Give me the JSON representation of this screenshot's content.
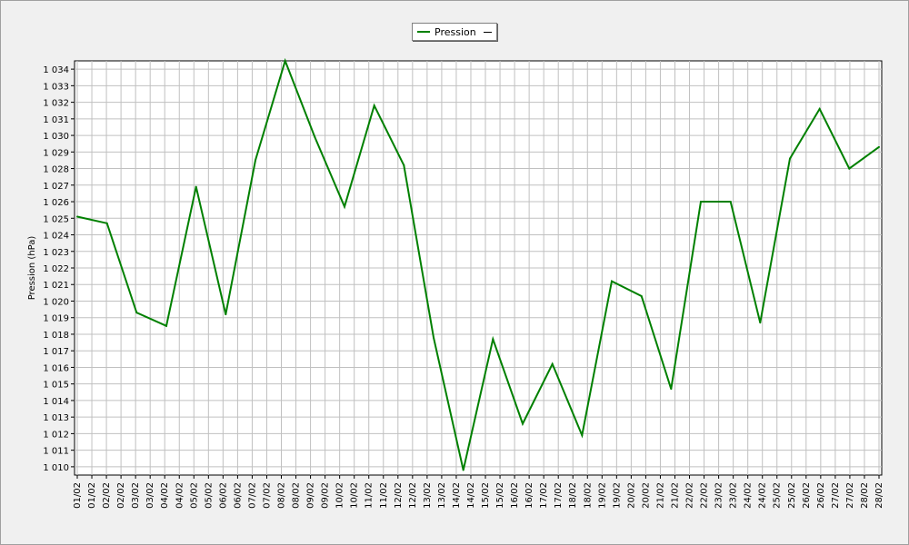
{
  "chart_data": {
    "type": "line",
    "title": "",
    "xlabel": "",
    "ylabel": "Pression (hPa)",
    "ylim": [
      1009.5,
      1034.5
    ],
    "grid": true,
    "legend_position": "top-center",
    "colors": {
      "line": "#008000",
      "grid": "#c0c0c0",
      "plot_bg": "#ffffff"
    },
    "y_ticks": [
      {
        "value": 1010,
        "label": "1 010"
      },
      {
        "value": 1011,
        "label": "1 011"
      },
      {
        "value": 1012,
        "label": "1 012"
      },
      {
        "value": 1013,
        "label": "1 013"
      },
      {
        "value": 1014,
        "label": "1 014"
      },
      {
        "value": 1015,
        "label": "1 015"
      },
      {
        "value": 1016,
        "label": "1 016"
      },
      {
        "value": 1017,
        "label": "1 017"
      },
      {
        "value": 1018,
        "label": "1 018"
      },
      {
        "value": 1019,
        "label": "1 019"
      },
      {
        "value": 1020,
        "label": "1 020"
      },
      {
        "value": 1021,
        "label": "1 021"
      },
      {
        "value": 1022,
        "label": "1 022"
      },
      {
        "value": 1023,
        "label": "1 023"
      },
      {
        "value": 1024,
        "label": "1 024"
      },
      {
        "value": 1025,
        "label": "1 025"
      },
      {
        "value": 1026,
        "label": "1 026"
      },
      {
        "value": 1027,
        "label": "1 027"
      },
      {
        "value": 1028,
        "label": "1 028"
      },
      {
        "value": 1029,
        "label": "1 029"
      },
      {
        "value": 1030,
        "label": "1 030"
      },
      {
        "value": 1031,
        "label": "1 031"
      },
      {
        "value": 1032,
        "label": "1 032"
      },
      {
        "value": 1033,
        "label": "1 033"
      },
      {
        "value": 1034,
        "label": "1 034"
      }
    ],
    "x_tick_labels": [
      "01/02",
      "01/02",
      "02/02",
      "02/02",
      "03/02",
      "03/02",
      "04/02",
      "04/02",
      "05/02",
      "05/02",
      "06/02",
      "06/02",
      "07/02",
      "07/02",
      "08/02",
      "08/02",
      "09/02",
      "09/02",
      "10/02",
      "10/02",
      "11/02",
      "11/02",
      "12/02",
      "12/02",
      "13/02",
      "13/02",
      "14/02",
      "14/02",
      "15/02",
      "15/02",
      "16/02",
      "16/02",
      "17/02",
      "17/02",
      "18/02",
      "18/02",
      "19/02",
      "19/02",
      "20/02",
      "20/02",
      "21/02",
      "21/02",
      "22/02",
      "22/02",
      "23/02",
      "23/02",
      "24/02",
      "24/02",
      "25/02",
      "25/02",
      "26/02",
      "26/02",
      "27/02",
      "27/02",
      "28/02",
      "28/02"
    ],
    "series": [
      {
        "name": "Pression",
        "x": [
          "01/02",
          "02/02",
          "03/02",
          "04/02",
          "05/02",
          "06/02",
          "07/02",
          "08/02",
          "09/02",
          "10/02",
          "11/02",
          "12/02",
          "13/02",
          "14/02",
          "15/02",
          "16/02",
          "17/02",
          "18/02",
          "19/02",
          "20/02",
          "21/02",
          "22/02",
          "23/02",
          "24/02",
          "25/02",
          "26/02",
          "27/02",
          "28/02"
        ],
        "values": [
          1025.1,
          1024.7,
          1019.3,
          1018.5,
          1026.9,
          1019.2,
          1028.5,
          1034.5,
          1029.9,
          1025.7,
          1031.8,
          1028.2,
          1017.8,
          1009.8,
          1017.7,
          1012.6,
          1016.2,
          1011.9,
          1021.2,
          1020.3,
          1014.7,
          1026.0,
          1026.0,
          1018.7,
          1028.6,
          1031.6,
          1028.0,
          1029.3
        ]
      }
    ]
  }
}
